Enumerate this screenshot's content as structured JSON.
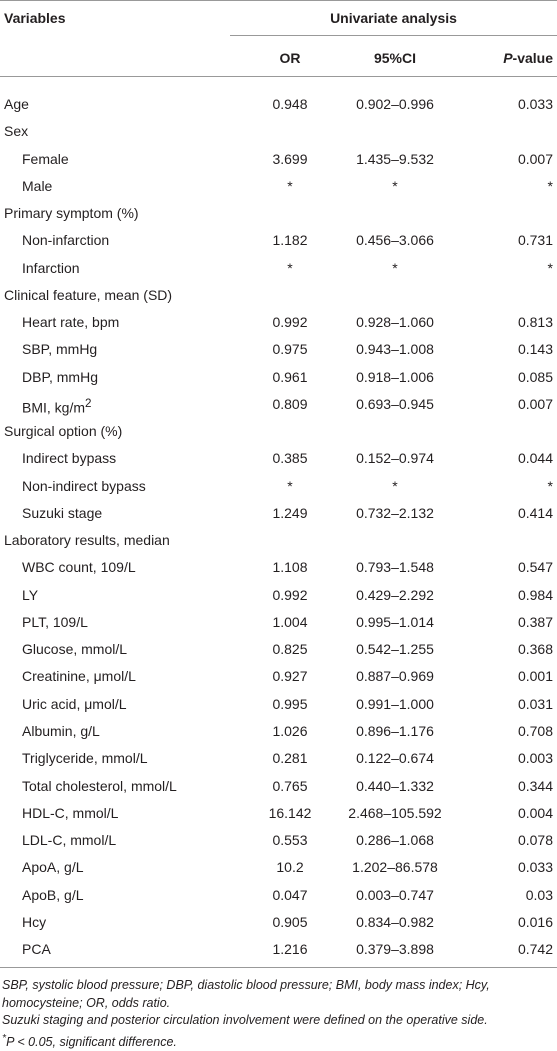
{
  "table": {
    "header": {
      "variables": "Variables",
      "group": "Univariate analysis",
      "columns": [
        "OR",
        "95%CI",
        {
          "italic": "P",
          "text": "-value"
        }
      ]
    },
    "rows": [
      {
        "label": "Age",
        "cells": [
          "0.948",
          "0.902–0.996",
          "0.033"
        ]
      },
      {
        "label": "Sex",
        "items": [
          {
            "label": "Female",
            "cells": [
              "3.699",
              "1.435–9.532",
              "0.007"
            ]
          },
          {
            "label": "Male",
            "cells": [
              "*",
              "*",
              "*"
            ]
          }
        ]
      },
      {
        "label": "Primary symptom (%)",
        "items": [
          {
            "label": "Non-infarction",
            "cells": [
              "1.182",
              "0.456–3.066",
              "0.731"
            ]
          },
          {
            "label": "Infarction",
            "cells": [
              "*",
              "*",
              "*"
            ]
          }
        ]
      },
      {
        "label": "Clinical feature, mean (SD)",
        "items": [
          {
            "label": "Heart rate, bpm",
            "cells": [
              "0.992",
              "0.928–1.060",
              "0.813"
            ]
          },
          {
            "label": "SBP, mmHg",
            "cells": [
              "0.975",
              "0.943–1.008",
              "0.143"
            ]
          },
          {
            "label": "DBP, mmHg",
            "cells": [
              "0.961",
              "0.918–1.006",
              "0.085"
            ]
          },
          {
            "label": {
              "text": "BMI, kg/m",
              "sup": "2"
            },
            "cells": [
              "0.809",
              "0.693–0.945",
              "0.007"
            ]
          }
        ]
      },
      {
        "label": "Surgical option (%)",
        "items": [
          {
            "label": "Indirect bypass",
            "cells": [
              "0.385",
              "0.152–0.974",
              "0.044"
            ]
          },
          {
            "label": "Non-indirect bypass",
            "cells": [
              "*",
              "*",
              "*"
            ]
          },
          {
            "label": "Suzuki stage",
            "cells": [
              "1.249",
              "0.732–2.132",
              "0.414"
            ]
          }
        ]
      },
      {
        "label": "Laboratory results, median",
        "items": [
          {
            "label": "WBC count, 109/L",
            "cells": [
              "1.108",
              "0.793–1.548",
              "0.547"
            ]
          },
          {
            "label": "LY",
            "cells": [
              "0.992",
              "0.429–2.292",
              "0.984"
            ]
          },
          {
            "label": "PLT, 109/L",
            "cells": [
              "1.004",
              "0.995–1.014",
              "0.387"
            ]
          },
          {
            "label": "Glucose, mmol/L",
            "cells": [
              "0.825",
              "0.542–1.255",
              "0.368"
            ]
          },
          {
            "label": "Creatinine, μmol/L",
            "cells": [
              "0.927",
              "0.887–0.969",
              "0.001"
            ]
          },
          {
            "label": "Uric acid, μmol/L",
            "cells": [
              "0.995",
              "0.991–1.000",
              "0.031"
            ]
          },
          {
            "label": "Albumin, g/L",
            "cells": [
              "1.026",
              "0.896–1.176",
              "0.708"
            ]
          },
          {
            "label": "Triglyceride, mmol/L",
            "cells": [
              "0.281",
              "0.122–0.674",
              "0.003"
            ]
          },
          {
            "label": "Total cholesterol, mmol/L",
            "cells": [
              "0.765",
              "0.440–1.332",
              "0.344"
            ]
          },
          {
            "label": "HDL-C, mmol/L",
            "cells": [
              "16.142",
              "2.468–105.592",
              "0.004"
            ]
          },
          {
            "label": "LDL-C, mmol/L",
            "cells": [
              "0.553",
              "0.286–1.068",
              "0.078"
            ]
          },
          {
            "label": "ApoA, g/L",
            "cells": [
              "10.2",
              "1.202–86.578",
              "0.033"
            ]
          },
          {
            "label": "ApoB, g/L",
            "cells": [
              "0.047",
              "0.003–0.747",
              "0.03"
            ]
          },
          {
            "label": "Hcy",
            "cells": [
              "0.905",
              "0.834–0.982",
              "0.016"
            ]
          },
          {
            "label": "PCA",
            "cells": [
              "1.216",
              "0.379–3.898",
              "0.742"
            ]
          }
        ]
      }
    ],
    "footnotes": [
      "SBP, systolic blood pressure; DBP, diastolic blood pressure; BMI, body mass index; Hcy, homocysteine; OR, odds ratio.",
      "Suzuki staging and posterior circulation involvement were defined on the operative side.",
      {
        "sup": "*",
        "text": "P < 0.05, significant difference."
      }
    ]
  }
}
